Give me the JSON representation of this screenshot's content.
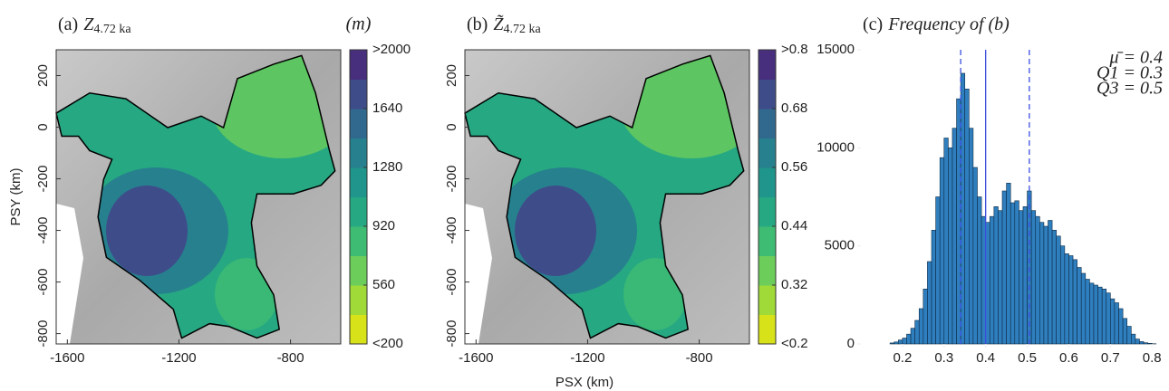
{
  "chart_data": [
    {
      "type": "map",
      "title": {
        "label": "(a)",
        "symbol": "Z",
        "subscript": "4.72 ka"
      },
      "ylabel": "PSY (km)",
      "xlim": [
        -1640,
        -620
      ],
      "xticks": [
        -1600,
        -1200,
        -800
      ],
      "ylim": [
        -840,
        300
      ],
      "yticks": [
        200,
        0,
        -200,
        -400,
        -600,
        -800
      ],
      "colorbar": {
        "unit": "(m)",
        "lim": [
          200,
          2000
        ],
        "ticks": [
          {
            "value": 2000,
            "label": ">2000"
          },
          1640,
          1280,
          920,
          560,
          {
            "value": 200,
            "label": "<200"
          }
        ],
        "colors": [
          "#d8e219",
          "#a0da39",
          "#6ccd5a",
          "#3fbc73",
          "#26a882",
          "#1f958b",
          "#27808e",
          "#31688e",
          "#3e4c8a",
          "#472f7d"
        ]
      }
    },
    {
      "type": "map",
      "title": {
        "label": "(b)",
        "symbol": "Z̃",
        "subscript": "4.72 ka"
      },
      "xlabel": "PSX (km)",
      "xlim": [
        -1640,
        -620
      ],
      "xticks": [
        -1600,
        -1200,
        -800
      ],
      "ylim": [
        -840,
        300
      ],
      "yticks": [
        200,
        0,
        -200,
        -400,
        -600,
        -800
      ],
      "colorbar": {
        "lim": [
          0.2,
          0.8
        ],
        "ticks": [
          {
            "value": 0.8,
            "label": ">0.8"
          },
          0.68,
          0.56,
          0.44,
          0.32,
          {
            "value": 0.2,
            "label": "<0.2"
          }
        ],
        "colors": [
          "#d8e219",
          "#a0da39",
          "#6ccd5a",
          "#3fbc73",
          "#26a882",
          "#1f958b",
          "#27808e",
          "#31688e",
          "#3e4c8a",
          "#472f7d"
        ]
      }
    },
    {
      "type": "histogram",
      "title": {
        "label": "(c)",
        "text": "Frequency of (b)"
      },
      "color": "#2f7fbf",
      "bins": [
        0.17,
        0.18,
        0.19,
        0.2,
        0.21,
        0.22,
        0.23,
        0.24,
        0.25,
        0.26,
        0.27,
        0.28,
        0.29,
        0.3,
        0.31,
        0.32,
        0.33,
        0.34,
        0.35,
        0.36,
        0.37,
        0.38,
        0.39,
        0.4,
        0.41,
        0.42,
        0.43,
        0.44,
        0.45,
        0.46,
        0.47,
        0.48,
        0.49,
        0.5,
        0.51,
        0.52,
        0.53,
        0.54,
        0.55,
        0.56,
        0.57,
        0.58,
        0.59,
        0.6,
        0.61,
        0.62,
        0.63,
        0.64,
        0.65,
        0.66,
        0.67,
        0.68,
        0.69,
        0.7,
        0.71,
        0.72,
        0.73,
        0.74,
        0.75,
        0.76,
        0.77,
        0.78,
        0.79,
        0.8,
        0.81
      ],
      "values": [
        50,
        100,
        200,
        300,
        500,
        800,
        1200,
        1800,
        2800,
        4200,
        5800,
        7500,
        9500,
        10500,
        10000,
        11000,
        12500,
        13800,
        13000,
        11000,
        9000,
        7500,
        6500,
        6200,
        6500,
        7000,
        6800,
        7800,
        8200,
        7200,
        7300,
        6800,
        7000,
        7800,
        6800,
        6500,
        6200,
        6000,
        6300,
        5800,
        5500,
        5000,
        4600,
        4500,
        4300,
        3900,
        3600,
        3300,
        3100,
        3000,
        2900,
        2800,
        2600,
        2300,
        2100,
        1800,
        1300,
        900,
        500,
        250,
        120,
        60,
        30,
        10
      ],
      "xlim": [
        0.1,
        0.83
      ],
      "xticks": [
        0.2,
        0.3,
        0.4,
        0.5,
        0.6,
        0.7,
        0.8
      ],
      "ylim": [
        0,
        15000
      ],
      "yticks": [
        0,
        5000,
        10000,
        15000
      ],
      "mean_line": 0.4,
      "q1_line": 0.34,
      "q3_line": 0.505,
      "stats_labels": [
        "μ̄ = 0.4",
        "Q1 = 0.3",
        "Q3 = 0.5"
      ]
    }
  ]
}
